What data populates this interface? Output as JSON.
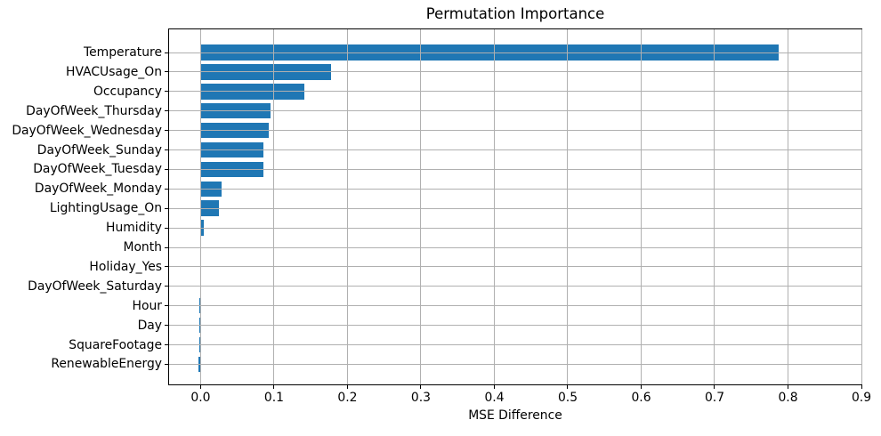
{
  "figure": {
    "title": "Permutation Importance",
    "xlabel": "MSE Difference"
  },
  "chart_data": {
    "type": "bar",
    "orientation": "horizontal",
    "title": "Permutation Importance",
    "xlabel": "MSE Difference",
    "ylabel": "",
    "categories": [
      "Temperature",
      "HVACUsage_On",
      "Occupancy",
      "DayOfWeek_Thursday",
      "DayOfWeek_Wednesday",
      "DayOfWeek_Sunday",
      "DayOfWeek_Tuesday",
      "DayOfWeek_Monday",
      "LightingUsage_On",
      "Humidity",
      "Month",
      "Holiday_Yes",
      "DayOfWeek_Saturday",
      "Hour",
      "Day",
      "SquareFootage",
      "RenewableEnergy"
    ],
    "values": [
      0.787,
      0.178,
      0.141,
      0.095,
      0.093,
      0.085,
      0.085,
      0.028,
      0.025,
      0.004,
      0.0,
      0.0,
      0.0,
      -0.002,
      -0.002,
      -0.002,
      -0.003
    ],
    "xlim": [
      -0.043,
      0.9
    ],
    "xticks": [
      0.0,
      0.1,
      0.2,
      0.3,
      0.4,
      0.5,
      0.6,
      0.7,
      0.8,
      0.9
    ],
    "grid": true,
    "legend_position": "none",
    "bar_color": "#1f77b4",
    "grid_color": "#b0b0b0",
    "axis_color": "#000000"
  }
}
